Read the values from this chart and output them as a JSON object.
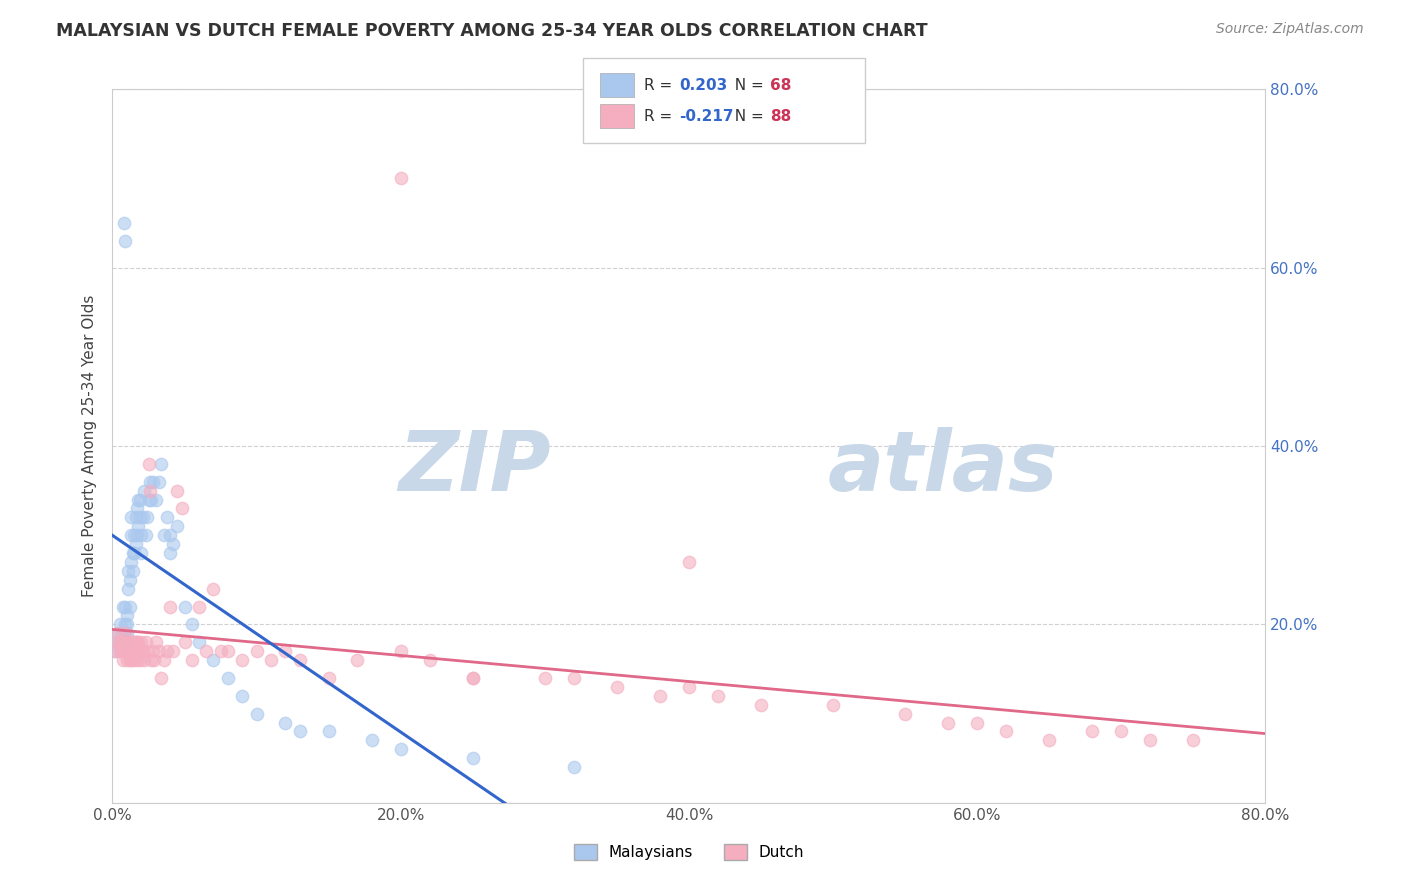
{
  "title": "MALAYSIAN VS DUTCH FEMALE POVERTY AMONG 25-34 YEAR OLDS CORRELATION CHART",
  "source": "Source: ZipAtlas.com",
  "ylabel": "Female Poverty Among 25-34 Year Olds",
  "xlim": [
    0.0,
    0.8
  ],
  "ylim": [
    0.0,
    0.8
  ],
  "x_ticks": [
    0.0,
    0.2,
    0.4,
    0.6,
    0.8
  ],
  "x_tick_labels": [
    "0.0%",
    "20.0%",
    "40.0%",
    "60.0%",
    "80.0%"
  ],
  "y_ticks": [
    0.0,
    0.2,
    0.4,
    0.6,
    0.8
  ],
  "y_tick_labels_right": [
    "",
    "20.0%",
    "40.0%",
    "60.0%",
    "80.0%"
  ],
  "malaysian_R": 0.203,
  "malaysian_N": 68,
  "dutch_R": -0.217,
  "dutch_N": 88,
  "malaysian_color": "#aac8ee",
  "dutch_color": "#f4aec0",
  "malaysian_line_color": "#3366cc",
  "dutch_line_color": "#e06888",
  "trendline_dashed_color": "#b0c8e8",
  "background_color": "#ffffff",
  "grid_color": "#cccccc",
  "watermark_zip": "ZIP",
  "watermark_atlas": "atlas",
  "watermark_color": "#c8d8e8",
  "legend_R_color": "#3366cc",
  "legend_N_color": "#cc3355",
  "malaysian_x": [
    0.002,
    0.003,
    0.004,
    0.005,
    0.005,
    0.006,
    0.007,
    0.008,
    0.008,
    0.009,
    0.009,
    0.009,
    0.01,
    0.01,
    0.01,
    0.01,
    0.011,
    0.011,
    0.012,
    0.012,
    0.013,
    0.013,
    0.013,
    0.014,
    0.014,
    0.015,
    0.015,
    0.016,
    0.016,
    0.017,
    0.017,
    0.018,
    0.018,
    0.019,
    0.019,
    0.02,
    0.02,
    0.021,
    0.022,
    0.023,
    0.024,
    0.025,
    0.026,
    0.027,
    0.028,
    0.03,
    0.032,
    0.034,
    0.036,
    0.038,
    0.04,
    0.04,
    0.042,
    0.045,
    0.05,
    0.055,
    0.06,
    0.07,
    0.08,
    0.09,
    0.1,
    0.12,
    0.13,
    0.15,
    0.18,
    0.2,
    0.25,
    0.32
  ],
  "malaysian_y": [
    0.17,
    0.18,
    0.19,
    0.18,
    0.2,
    0.19,
    0.22,
    0.19,
    0.65,
    0.2,
    0.22,
    0.63,
    0.18,
    0.19,
    0.2,
    0.21,
    0.24,
    0.26,
    0.22,
    0.25,
    0.27,
    0.3,
    0.32,
    0.26,
    0.28,
    0.28,
    0.3,
    0.29,
    0.32,
    0.3,
    0.33,
    0.31,
    0.34,
    0.32,
    0.34,
    0.28,
    0.3,
    0.32,
    0.35,
    0.3,
    0.32,
    0.34,
    0.36,
    0.34,
    0.36,
    0.34,
    0.36,
    0.38,
    0.3,
    0.32,
    0.28,
    0.3,
    0.29,
    0.31,
    0.22,
    0.2,
    0.18,
    0.16,
    0.14,
    0.12,
    0.1,
    0.09,
    0.08,
    0.08,
    0.07,
    0.06,
    0.05,
    0.04
  ],
  "dutch_x": [
    0.002,
    0.003,
    0.004,
    0.005,
    0.005,
    0.006,
    0.006,
    0.007,
    0.008,
    0.008,
    0.009,
    0.009,
    0.01,
    0.01,
    0.011,
    0.011,
    0.012,
    0.012,
    0.013,
    0.013,
    0.014,
    0.014,
    0.015,
    0.015,
    0.016,
    0.016,
    0.017,
    0.017,
    0.018,
    0.018,
    0.019,
    0.019,
    0.02,
    0.021,
    0.022,
    0.023,
    0.024,
    0.025,
    0.026,
    0.027,
    0.028,
    0.029,
    0.03,
    0.032,
    0.034,
    0.036,
    0.038,
    0.04,
    0.042,
    0.045,
    0.048,
    0.05,
    0.055,
    0.06,
    0.065,
    0.07,
    0.075,
    0.08,
    0.09,
    0.1,
    0.11,
    0.12,
    0.13,
    0.15,
    0.17,
    0.2,
    0.22,
    0.25,
    0.3,
    0.35,
    0.38,
    0.4,
    0.42,
    0.45,
    0.5,
    0.55,
    0.58,
    0.6,
    0.62,
    0.65,
    0.68,
    0.7,
    0.72,
    0.75,
    0.2,
    0.25,
    0.32,
    0.4
  ],
  "dutch_y": [
    0.17,
    0.18,
    0.19,
    0.18,
    0.17,
    0.18,
    0.17,
    0.16,
    0.18,
    0.17,
    0.19,
    0.17,
    0.18,
    0.16,
    0.18,
    0.17,
    0.16,
    0.18,
    0.17,
    0.16,
    0.18,
    0.17,
    0.18,
    0.16,
    0.18,
    0.17,
    0.18,
    0.16,
    0.18,
    0.17,
    0.17,
    0.16,
    0.18,
    0.17,
    0.16,
    0.18,
    0.17,
    0.38,
    0.35,
    0.16,
    0.17,
    0.16,
    0.18,
    0.17,
    0.14,
    0.16,
    0.17,
    0.22,
    0.17,
    0.35,
    0.33,
    0.18,
    0.16,
    0.22,
    0.17,
    0.24,
    0.17,
    0.17,
    0.16,
    0.17,
    0.16,
    0.17,
    0.16,
    0.14,
    0.16,
    0.17,
    0.16,
    0.14,
    0.14,
    0.13,
    0.12,
    0.13,
    0.12,
    0.11,
    0.11,
    0.1,
    0.09,
    0.09,
    0.08,
    0.07,
    0.08,
    0.08,
    0.07,
    0.07,
    0.7,
    0.14,
    0.14,
    0.27
  ]
}
